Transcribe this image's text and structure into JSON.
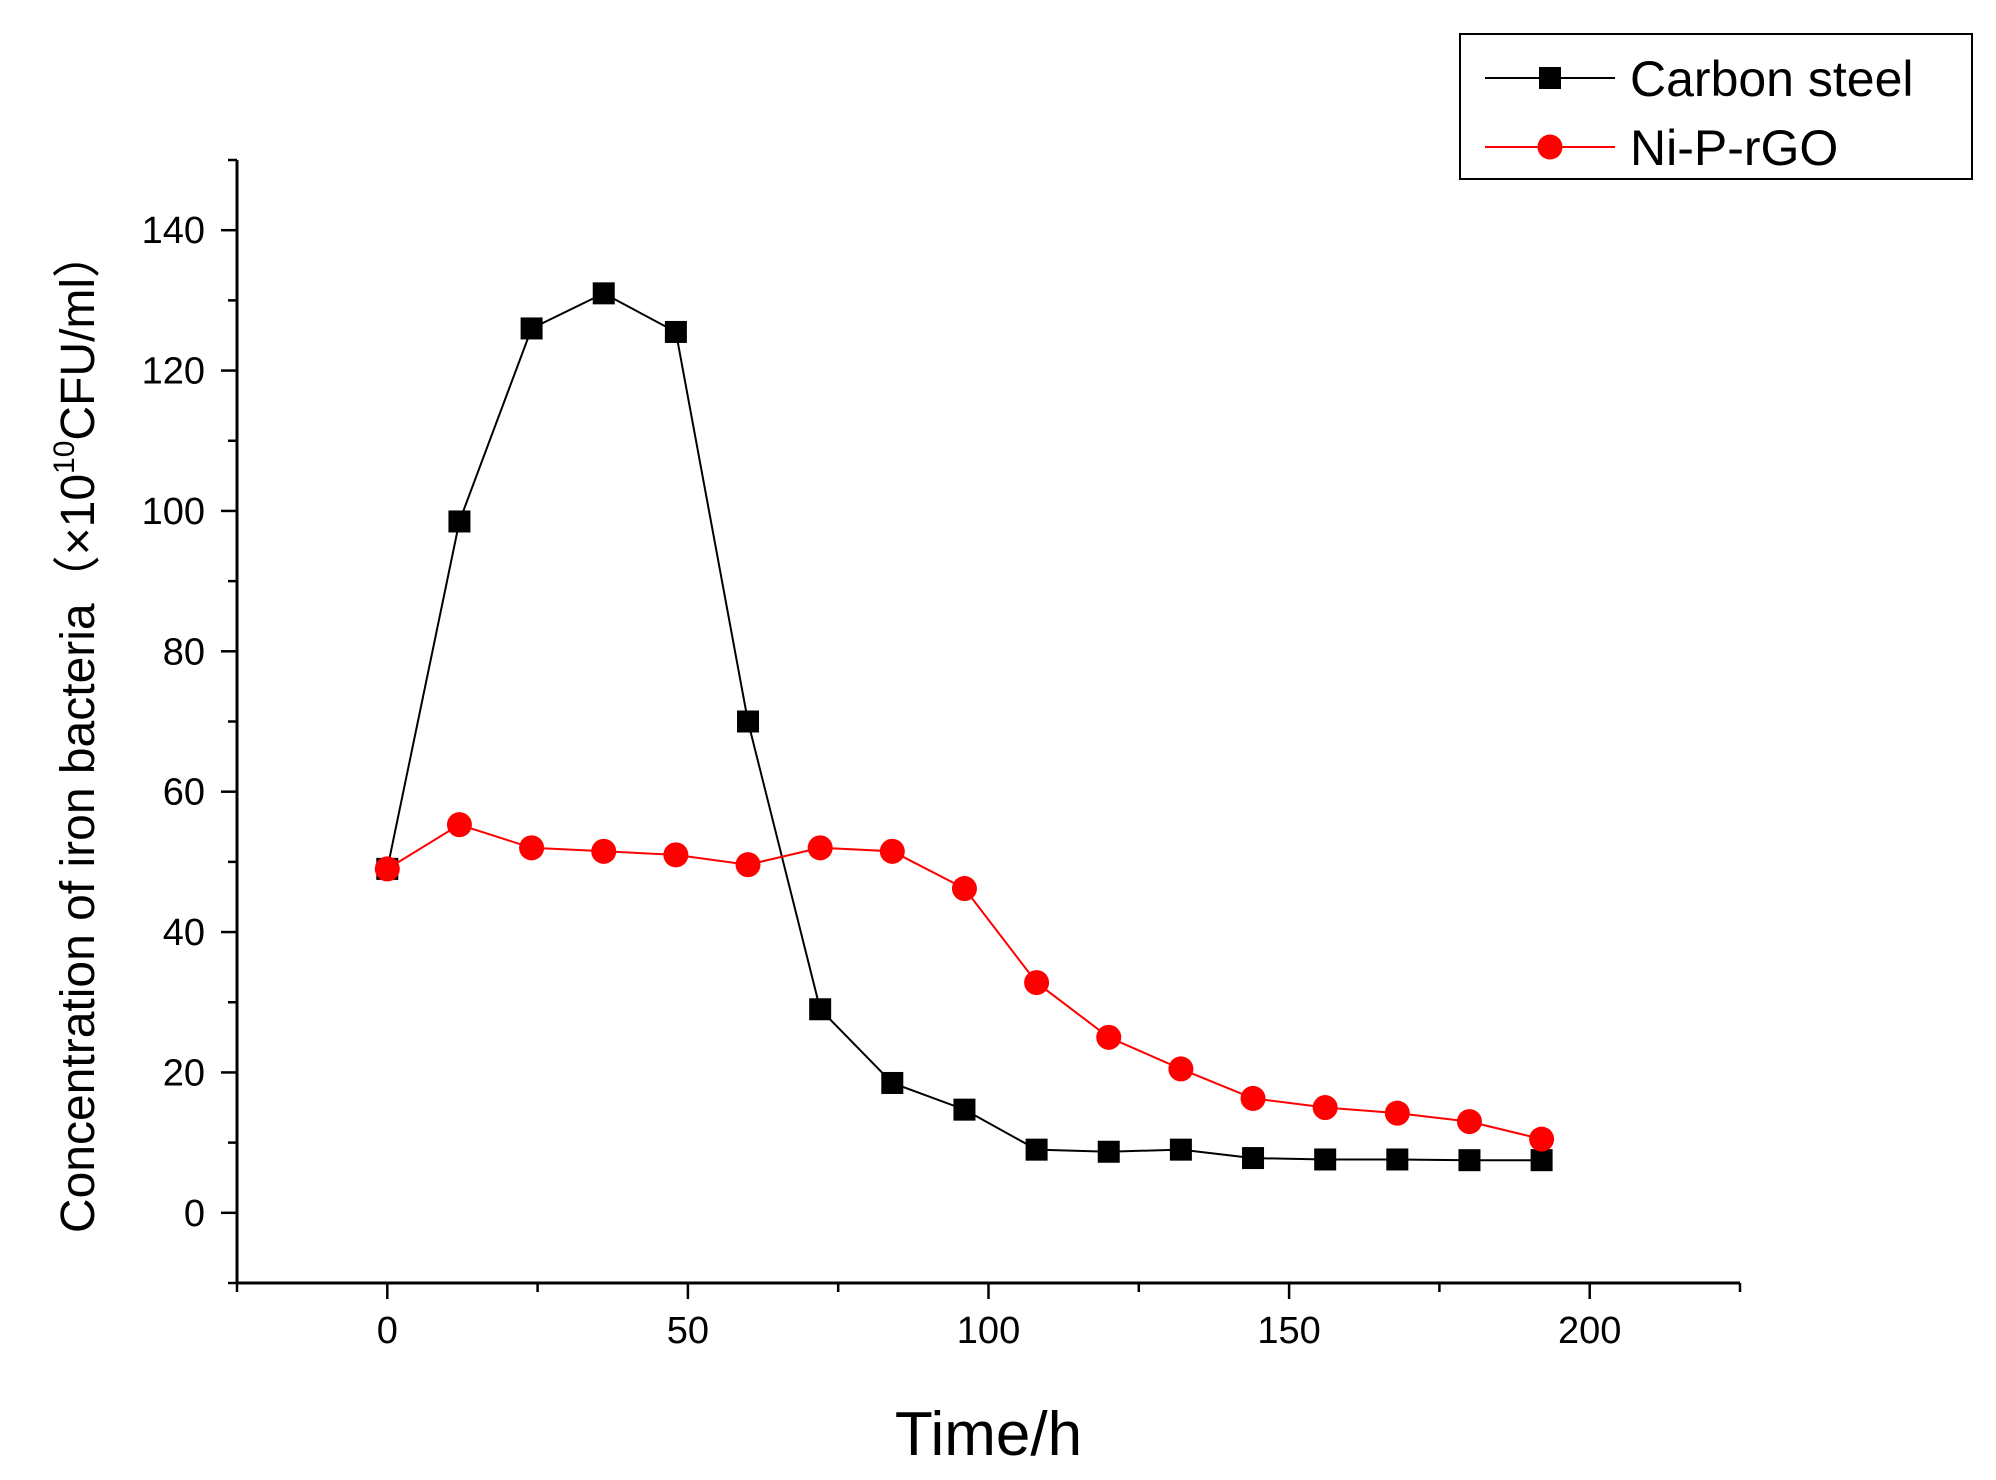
{
  "chart_data": {
    "type": "line",
    "title": "",
    "xlabel": "Time/h",
    "ylabel": {
      "prefix": "Concentration of iron bacteria（×10",
      "superscript": "10",
      "suffix": "CFU/ml）"
    },
    "xlim": [
      -25,
      225
    ],
    "ylim": [
      -10,
      150
    ],
    "x_ticks": [
      0,
      50,
      100,
      150,
      200
    ],
    "y_ticks": [
      0,
      20,
      40,
      60,
      80,
      100,
      120,
      140
    ],
    "x_tick_labels": [
      "0",
      "50",
      "100",
      "150",
      "200"
    ],
    "y_tick_labels": [
      "0",
      "20",
      "40",
      "60",
      "80",
      "100",
      "120",
      "140"
    ],
    "grid": false,
    "legend_position": "top-right",
    "series": [
      {
        "name": "Carbon steel",
        "color": "#000000",
        "marker": "square",
        "x": [
          0,
          12,
          24,
          36,
          48,
          60,
          72,
          84,
          96,
          108,
          120,
          132,
          144,
          156,
          168,
          180,
          192
        ],
        "values": [
          49,
          98.5,
          126,
          131,
          125.5,
          70,
          29,
          18.5,
          14.7,
          9,
          8.7,
          9,
          7.8,
          7.6,
          7.6,
          7.5,
          7.5
        ]
      },
      {
        "name": "Ni-P-rGO",
        "color": "#ff0000",
        "marker": "circle",
        "x": [
          0,
          12,
          24,
          36,
          48,
          60,
          72,
          84,
          96,
          108,
          120,
          132,
          144,
          156,
          168,
          180,
          192
        ],
        "values": [
          49,
          55.3,
          52,
          51.5,
          51,
          49.6,
          52,
          51.5,
          46.2,
          32.8,
          25,
          20.5,
          16.3,
          15,
          14.2,
          13,
          10.5
        ]
      }
    ]
  }
}
